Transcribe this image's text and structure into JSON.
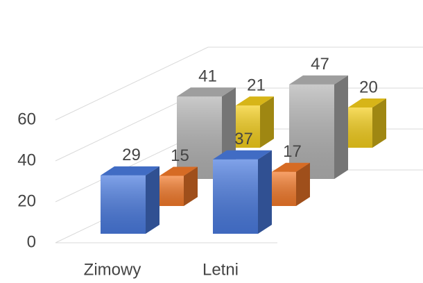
{
  "chart_data": {
    "type": "bar3d",
    "categories": [
      "Zimowy",
      "Letni"
    ],
    "series": [
      {
        "color": "#4a7be0",
        "values": [
          29,
          37
        ]
      },
      {
        "color": "#f47a2a",
        "values": [
          15,
          17
        ]
      },
      {
        "color": "#b4b4b4",
        "values": [
          41,
          47
        ]
      },
      {
        "color": "#f5cf1c",
        "values": [
          21,
          20
        ]
      }
    ],
    "ylim": [
      0,
      60
    ],
    "yticks": [
      0,
      20,
      40,
      60
    ],
    "grid": true
  }
}
